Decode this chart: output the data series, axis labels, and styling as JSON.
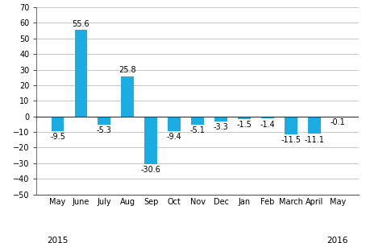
{
  "categories": [
    "May",
    "June",
    "July",
    "Aug",
    "Sep",
    "Oct",
    "Nov",
    "Dec",
    "Jan",
    "Feb",
    "March",
    "April",
    "May"
  ],
  "values": [
    -9.5,
    55.6,
    -5.3,
    25.8,
    -30.6,
    -9.4,
    -5.1,
    -3.3,
    -1.5,
    -1.4,
    -11.5,
    -11.1,
    -0.1
  ],
  "bar_color": "#1aace3",
  "ylim": [
    -50,
    70
  ],
  "yticks": [
    -50,
    -40,
    -30,
    -20,
    -10,
    0,
    10,
    20,
    30,
    40,
    50,
    60,
    70
  ],
  "grid_color": "#c8c8c8",
  "label_fontsize": 7,
  "tick_fontsize": 7,
  "year_fontsize": 7.5,
  "background_color": "#ffffff",
  "spine_color": "#555555",
  "zero_line_color": "#333333",
  "bar_width": 0.55
}
